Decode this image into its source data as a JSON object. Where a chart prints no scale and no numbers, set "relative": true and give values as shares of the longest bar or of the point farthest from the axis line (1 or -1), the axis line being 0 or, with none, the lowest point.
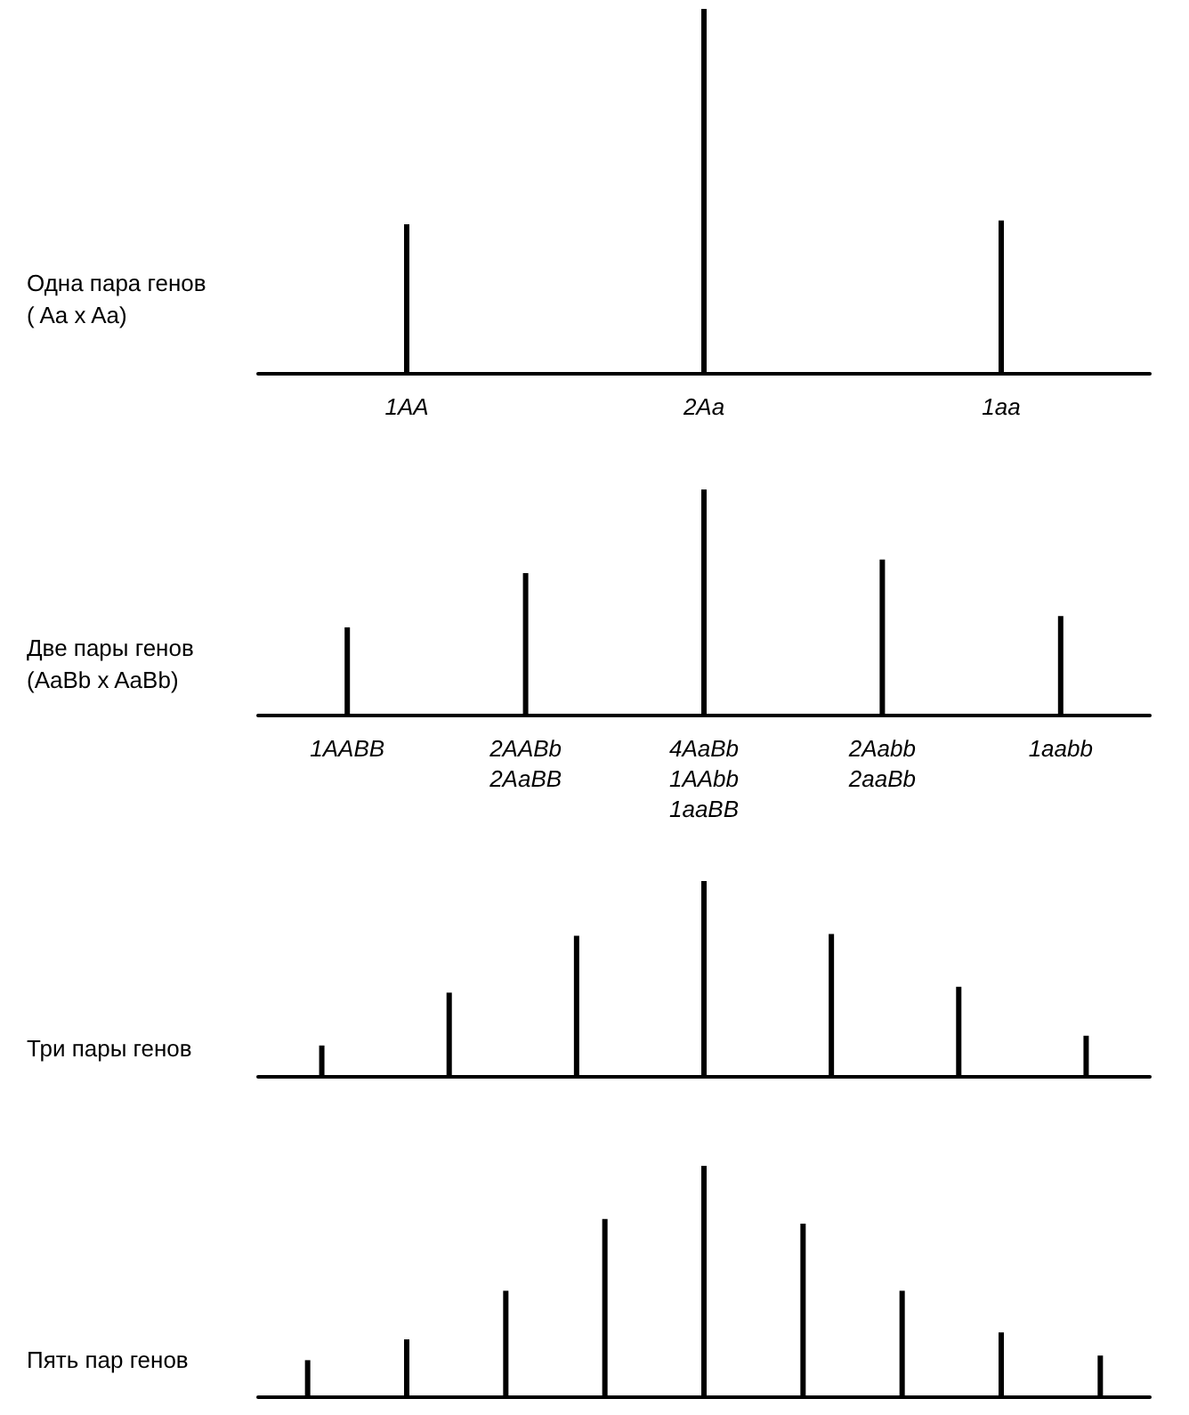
{
  "chart_data": [
    {
      "type": "bar",
      "title": "Одна пара генов\n( Aa x Aa)",
      "relative": true,
      "color": "#000000",
      "categories": [
        "1AA",
        "2Aa",
        "1aa"
      ],
      "values": [
        0.41,
        1,
        0.42
      ]
    },
    {
      "type": "bar",
      "title": "Две пары генов\n(AaBb x AaBb)",
      "relative": true,
      "color": "#000000",
      "categories": [
        "1AABB",
        "2AABb\n2AaBB",
        "4AaBb\n1AAbb\n1aaBB",
        "2Aabb\n2aaBb",
        "1aabb"
      ],
      "values": [
        0.39,
        0.63,
        1,
        0.69,
        0.44
      ]
    },
    {
      "type": "bar",
      "title": "Три пары генов",
      "relative": true,
      "color": "#000000",
      "categories": [
        null,
        null,
        null,
        null,
        null,
        null,
        null
      ],
      "values": [
        0.16,
        0.43,
        0.72,
        1,
        0.73,
        0.46,
        0.21
      ]
    },
    {
      "type": "bar",
      "title": "Пять пар генов",
      "relative": true,
      "color": "#000000",
      "categories": [
        null,
        null,
        null,
        null,
        null,
        null,
        null,
        null,
        null
      ],
      "values": [
        0.16,
        0.25,
        0.46,
        0.77,
        1,
        0.75,
        0.46,
        0.28,
        0.18
      ]
    }
  ]
}
